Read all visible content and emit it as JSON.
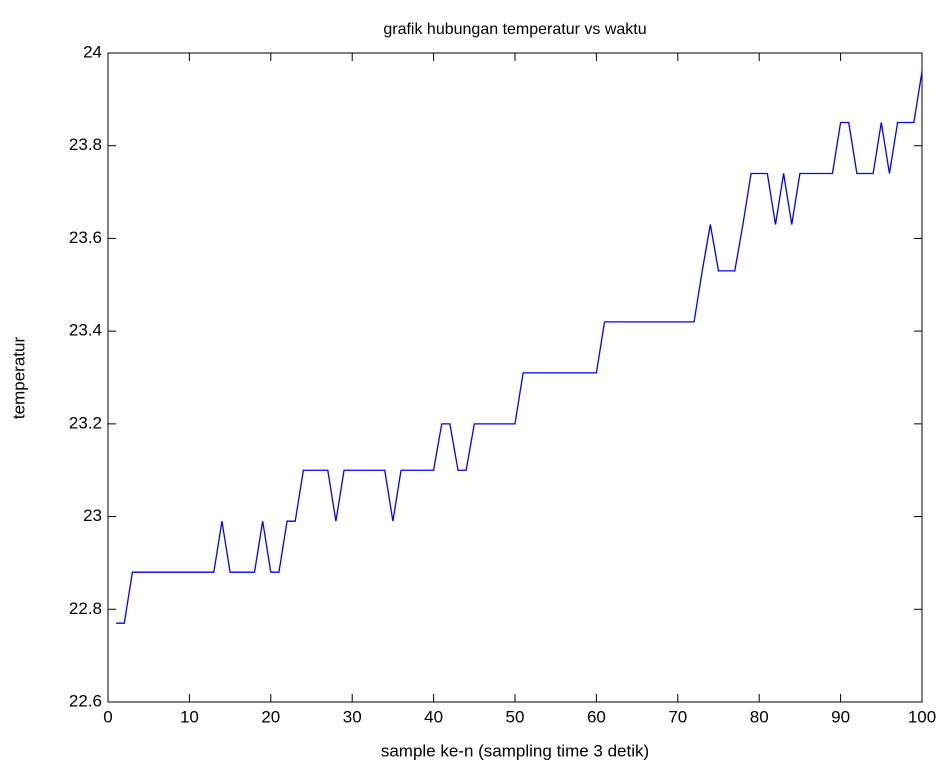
{
  "chart_data": {
    "type": "line",
    "title": "grafik hubungan temperatur vs waktu",
    "xlabel": "sample ke-n (sampling time 3 detik)",
    "ylabel": "temperatur",
    "x": [
      1,
      2,
      3,
      4,
      5,
      6,
      7,
      8,
      9,
      10,
      11,
      12,
      13,
      14,
      15,
      16,
      17,
      18,
      19,
      20,
      21,
      22,
      23,
      24,
      25,
      26,
      27,
      28,
      29,
      30,
      31,
      32,
      33,
      34,
      35,
      36,
      37,
      38,
      39,
      40,
      41,
      42,
      43,
      44,
      45,
      46,
      47,
      48,
      49,
      50,
      51,
      52,
      53,
      54,
      55,
      56,
      57,
      58,
      59,
      60,
      61,
      62,
      63,
      64,
      65,
      66,
      67,
      68,
      69,
      70,
      71,
      72,
      73,
      74,
      75,
      76,
      77,
      78,
      79,
      80,
      81,
      82,
      83,
      84,
      85,
      86,
      87,
      88,
      89,
      90,
      91,
      92,
      93,
      94,
      95,
      96,
      97,
      98,
      99,
      100
    ],
    "series": [
      {
        "color": "#0000ff",
        "values": [
          22.77,
          22.77,
          22.88,
          22.88,
          22.88,
          22.88,
          22.88,
          22.88,
          22.88,
          22.88,
          22.88,
          22.88,
          22.88,
          22.99,
          22.88,
          22.88,
          22.88,
          22.88,
          22.99,
          22.88,
          22.88,
          22.99,
          22.99,
          23.1,
          23.1,
          23.1,
          23.1,
          22.99,
          23.1,
          23.1,
          23.1,
          23.1,
          23.1,
          23.1,
          22.99,
          23.1,
          23.1,
          23.1,
          23.1,
          23.1,
          23.2,
          23.2,
          23.1,
          23.1,
          23.2,
          23.2,
          23.2,
          23.2,
          23.2,
          23.2,
          23.31,
          23.31,
          23.31,
          23.31,
          23.31,
          23.31,
          23.31,
          23.31,
          23.31,
          23.31,
          23.42,
          23.42,
          23.42,
          23.42,
          23.42,
          23.42,
          23.42,
          23.42,
          23.42,
          23.42,
          23.42,
          23.42,
          23.53,
          23.63,
          23.53,
          23.53,
          23.53,
          23.63,
          23.74,
          23.74,
          23.74,
          23.63,
          23.74,
          23.63,
          23.74,
          23.74,
          23.74,
          23.74,
          23.74,
          23.85,
          23.85,
          23.74,
          23.74,
          23.74,
          23.85,
          23.74,
          23.85,
          23.85,
          23.85,
          23.96
        ]
      }
    ],
    "xlim": [
      0,
      100
    ],
    "xticks": [
      0,
      10,
      20,
      30,
      40,
      50,
      60,
      70,
      80,
      90,
      100
    ],
    "ylim": [
      22.6,
      24
    ],
    "yticks": [
      22.6,
      22.8,
      23,
      23.2,
      23.4,
      23.6,
      23.8,
      24
    ]
  }
}
